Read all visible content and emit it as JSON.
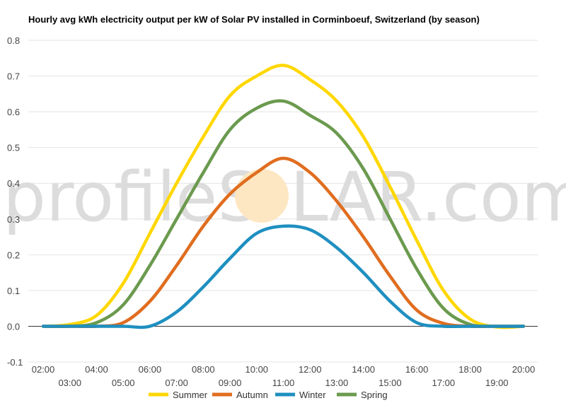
{
  "chart_data": {
    "type": "line",
    "title": "Hourly avg kWh electricity output per kW of Solar PV installed in Corminboeuf, Switzerland (by season)",
    "x": [
      "02:00",
      "03:00",
      "04:00",
      "05:00",
      "06:00",
      "07:00",
      "08:00",
      "09:00",
      "10:00",
      "11:00",
      "12:00",
      "13:00",
      "14:00",
      "15:00",
      "16:00",
      "17:00",
      "18:00",
      "19:00",
      "20:00"
    ],
    "ylim": [
      -0.1,
      0.8
    ],
    "yticks": [
      -0.1,
      0.0,
      0.1,
      0.2,
      0.3,
      0.4,
      0.5,
      0.6,
      0.7,
      0.8
    ],
    "ytick_labels": [
      "-0.1",
      "0.0",
      "0.1",
      "0.2",
      "0.3",
      "0.4",
      "0.5",
      "0.6",
      "0.7",
      "0.8"
    ],
    "grid": true,
    "legend_position": "bottom",
    "series": [
      {
        "name": "Summer",
        "color": "#ffd700",
        "values": [
          0.0,
          0.005,
          0.03,
          0.12,
          0.26,
          0.4,
          0.53,
          0.645,
          0.7,
          0.73,
          0.69,
          0.63,
          0.53,
          0.39,
          0.24,
          0.1,
          0.02,
          -0.002,
          0.0
        ]
      },
      {
        "name": "Autumn",
        "color": "#e06d1f",
        "values": [
          0.0,
          0.0,
          0.0,
          0.01,
          0.07,
          0.17,
          0.28,
          0.37,
          0.43,
          0.47,
          0.43,
          0.35,
          0.25,
          0.14,
          0.045,
          0.008,
          0.0,
          0.0,
          0.0
        ]
      },
      {
        "name": "Winter",
        "color": "#1f8fc0",
        "values": [
          0.0,
          0.0,
          0.0,
          0.0,
          0.0,
          0.04,
          0.11,
          0.19,
          0.26,
          0.28,
          0.27,
          0.22,
          0.15,
          0.07,
          0.01,
          0.0,
          0.0,
          0.0,
          0.0
        ]
      },
      {
        "name": "Spring",
        "color": "#6b9a4e",
        "values": [
          0.0,
          0.0,
          0.01,
          0.06,
          0.17,
          0.3,
          0.43,
          0.55,
          0.61,
          0.63,
          0.59,
          0.54,
          0.44,
          0.3,
          0.16,
          0.05,
          0.005,
          0.0,
          0.0
        ]
      }
    ]
  },
  "watermark": {
    "text_left": "profileS",
    "text_right": "LAR.com",
    "sun_color": "#fde7c2"
  }
}
